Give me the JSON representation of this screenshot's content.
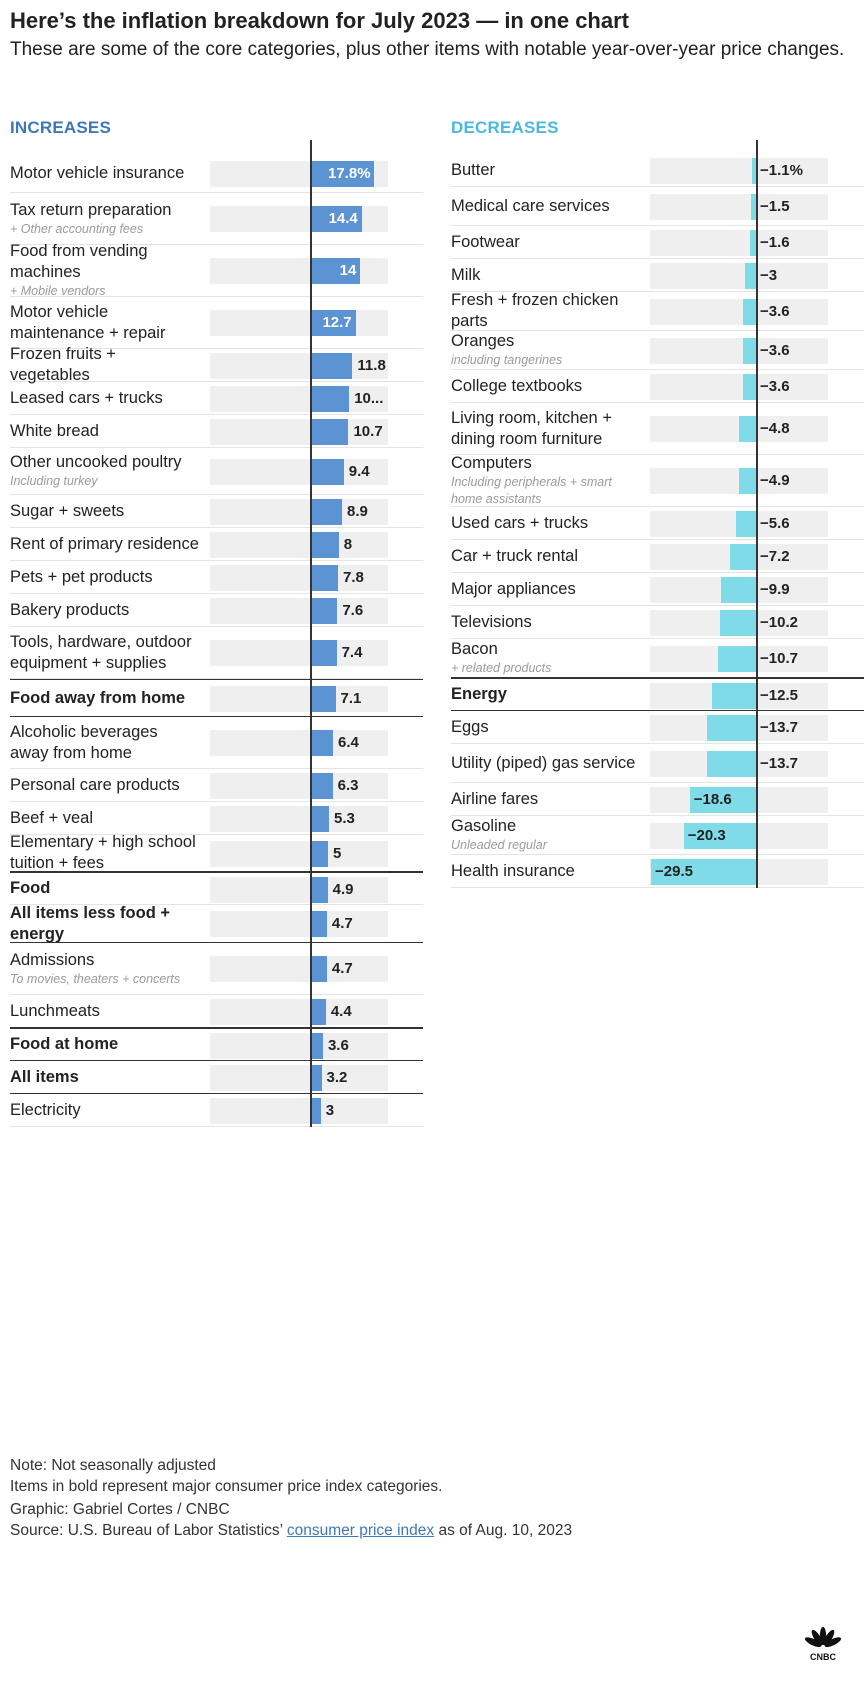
{
  "header": {
    "title": "Here’s the inflation breakdown for July 2023 — in one chart",
    "subtitle": "These are some of the core categories, plus other items with notable year-over-year price changes."
  },
  "colors": {
    "increase": "#5b93d3",
    "decrease": "#7fdbe8",
    "track": "#efefef",
    "increase_head": "#3f78b5",
    "decrease_head": "#4db8de"
  },
  "chart_data": {
    "type": "bar",
    "increases": {
      "heading": "INCREASES",
      "items": [
        {
          "name": "Motor vehicle insurance",
          "note": "",
          "value": 17.8,
          "label": "17.8%",
          "bold": false
        },
        {
          "name": "Tax return preparation",
          "note": "+ Other accounting fees",
          "value": 14.4,
          "label": "14.4",
          "bold": false
        },
        {
          "name": "Food from vending machines",
          "note": "+ Mobile vendors",
          "value": 14,
          "label": "14",
          "bold": false
        },
        {
          "name": "Motor vehicle maintenance + repair",
          "note": "",
          "value": 12.7,
          "label": "12.7",
          "bold": false
        },
        {
          "name": "Frozen fruits + vegetables",
          "note": "",
          "value": 11.8,
          "label": "11.8",
          "bold": false
        },
        {
          "name": "Leased cars + trucks",
          "note": "",
          "value": 10.9,
          "label": "10...",
          "bold": false
        },
        {
          "name": "White bread",
          "note": "",
          "value": 10.7,
          "label": "10.7",
          "bold": false
        },
        {
          "name": "Other uncooked poultry",
          "note": "Including turkey",
          "value": 9.4,
          "label": "9.4",
          "bold": false
        },
        {
          "name": "Sugar + sweets",
          "note": "",
          "value": 8.9,
          "label": "8.9",
          "bold": false
        },
        {
          "name": "Rent of primary residence",
          "note": "",
          "value": 8,
          "label": "8",
          "bold": false
        },
        {
          "name": "Pets + pet products",
          "note": "",
          "value": 7.8,
          "label": "7.8",
          "bold": false
        },
        {
          "name": "Bakery products",
          "note": "",
          "value": 7.6,
          "label": "7.6",
          "bold": false
        },
        {
          "name": "Tools, hardware, outdoor equipment + supplies",
          "note": "",
          "value": 7.4,
          "label": "7.4",
          "bold": false
        },
        {
          "name": "Food away from home",
          "note": "",
          "value": 7.1,
          "label": "7.1",
          "bold": true
        },
        {
          "name": "Alcoholic beverages away from home",
          "note": "",
          "value": 6.4,
          "label": "6.4",
          "bold": false
        },
        {
          "name": "Personal care products",
          "note": "",
          "value": 6.3,
          "label": "6.3",
          "bold": false
        },
        {
          "name": "Beef + veal",
          "note": "",
          "value": 5.3,
          "label": "5.3",
          "bold": false
        },
        {
          "name": "Elementary + high school tuition + fees",
          "note": "",
          "value": 5,
          "label": "5",
          "bold": false
        },
        {
          "name": "Food",
          "note": "",
          "value": 4.9,
          "label": "4.9",
          "bold": true
        },
        {
          "name": "All items less food + energy",
          "note": "",
          "value": 4.7,
          "label": "4.7",
          "bold": true
        },
        {
          "name": "Admissions",
          "note": "To movies, theaters + concerts",
          "value": 4.7,
          "label": "4.7",
          "bold": false
        },
        {
          "name": "Lunchmeats",
          "note": "",
          "value": 4.4,
          "label": "4.4",
          "bold": false
        },
        {
          "name": "Food at home",
          "note": "",
          "value": 3.6,
          "label": "3.6",
          "bold": true
        },
        {
          "name": "All items",
          "note": "",
          "value": 3.2,
          "label": "3.2",
          "bold": true
        },
        {
          "name": "Electricity",
          "note": "",
          "value": 3,
          "label": "3",
          "bold": false
        }
      ]
    },
    "decreases": {
      "heading": "DECREASES",
      "items": [
        {
          "name": "Butter",
          "note": "",
          "value": -1.1,
          "label": "−1.1%",
          "bold": false
        },
        {
          "name": "Medical care services",
          "note": "",
          "value": -1.5,
          "label": "−1.5",
          "bold": false
        },
        {
          "name": "Footwear",
          "note": "",
          "value": -1.6,
          "label": "−1.6",
          "bold": false
        },
        {
          "name": "Milk",
          "note": "",
          "value": -3,
          "label": "−3",
          "bold": false
        },
        {
          "name": "Fresh + frozen chicken parts",
          "note": "",
          "value": -3.6,
          "label": "−3.6",
          "bold": false
        },
        {
          "name": "Oranges",
          "note": "including tangerines",
          "value": -3.6,
          "label": "−3.6",
          "bold": false
        },
        {
          "name": "College textbooks",
          "note": "",
          "value": -3.6,
          "label": "−3.6",
          "bold": false
        },
        {
          "name": "Living room, kitchen + dining room furniture",
          "note": "",
          "value": -4.8,
          "label": "−4.8",
          "bold": false
        },
        {
          "name": "Computers",
          "note": "Including peripherals + smart home assistants",
          "value": -4.9,
          "label": "−4.9",
          "bold": false
        },
        {
          "name": "Used cars + trucks",
          "note": "",
          "value": -5.6,
          "label": "−5.6",
          "bold": false
        },
        {
          "name": "Car + truck rental",
          "note": "",
          "value": -7.2,
          "label": "−7.2",
          "bold": false
        },
        {
          "name": "Major appliances",
          "note": "",
          "value": -9.9,
          "label": "−9.9",
          "bold": false
        },
        {
          "name": "Televisions",
          "note": "",
          "value": -10.2,
          "label": "−10.2",
          "bold": false
        },
        {
          "name": "Bacon",
          "note": "+ related products",
          "value": -10.7,
          "label": "−10.7",
          "bold": false
        },
        {
          "name": "Energy",
          "note": "",
          "value": -12.5,
          "label": "−12.5",
          "bold": true
        },
        {
          "name": "Eggs",
          "note": "",
          "value": -13.7,
          "label": "−13.7",
          "bold": false
        },
        {
          "name": "Utility (piped) gas service",
          "note": "",
          "value": -13.7,
          "label": "−13.7",
          "bold": false
        },
        {
          "name": "Airline fares",
          "note": "",
          "value": -18.6,
          "label": "−18.6",
          "bold": false
        },
        {
          "name": "Gasoline",
          "note": "Unleaded regular",
          "value": -20.3,
          "label": "−20.3",
          "bold": false
        },
        {
          "name": "Health insurance",
          "note": "",
          "value": -29.5,
          "label": "−29.5",
          "bold": false
        }
      ]
    }
  },
  "footer": {
    "note1": "Note: Not seasonally adjusted",
    "note2": "Items in bold represent major consumer price index categories.",
    "credit": "Graphic: Gabriel Cortes / CNBC",
    "source_prefix": "Source: U.S. Bureau of Labor Statistics’ ",
    "source_link": "consumer price index",
    "source_suffix": " as of Aug. 10, 2023",
    "logo_text": "CNBC"
  }
}
